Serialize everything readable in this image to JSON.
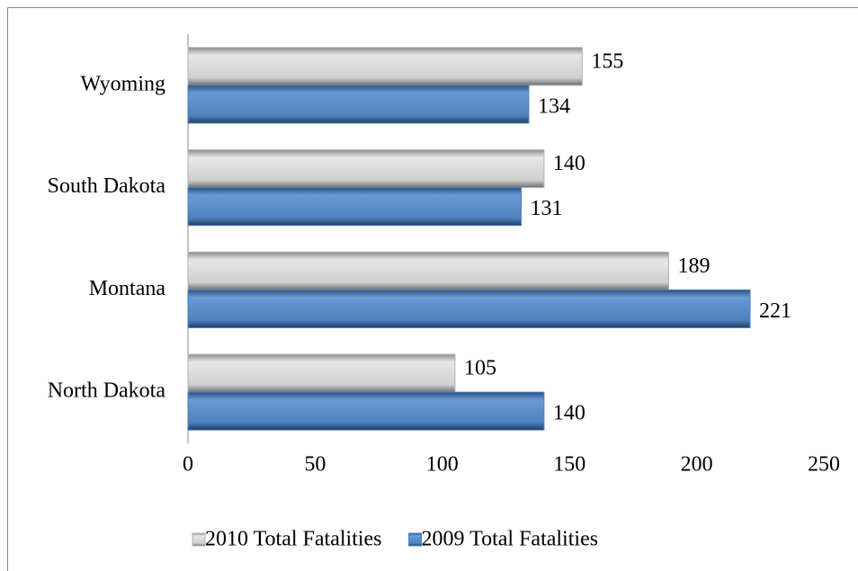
{
  "chart_data": {
    "type": "hbar",
    "categories": [
      "Wyoming",
      "South Dakota",
      "Montana",
      "North Dakota"
    ],
    "series": [
      {
        "name": "2010 Total Fatalities",
        "color": "#b3b3b3",
        "values": [
          155,
          140,
          189,
          105
        ]
      },
      {
        "name": "2009 Total Fatalities",
        "color": "#4f81bd",
        "values": [
          134,
          131,
          221,
          140
        ]
      }
    ],
    "xlim": [
      0,
      250
    ],
    "xticks": [
      0,
      50,
      100,
      150,
      200,
      250
    ],
    "grid": false,
    "legend": "bottom"
  }
}
